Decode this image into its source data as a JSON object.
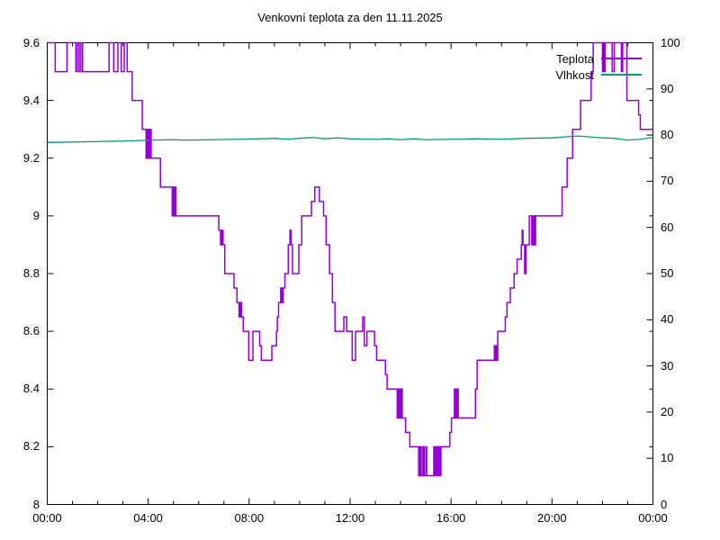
{
  "chart_data": {
    "type": "line",
    "title": "Venkovní teplota za den 11.11.2025",
    "grid": false,
    "legend_position": "top-right-inside",
    "background_color": "#ffffff",
    "border_color": "#000000",
    "x_axis": {
      "unit": "time HH:MM",
      "range_minutes": [
        0,
        1440
      ],
      "major_tick_every_minutes": 240,
      "minor_tick_every_minutes": 60,
      "major_tick_minutes": [
        0,
        240,
        480,
        720,
        960,
        1200,
        1440
      ],
      "tick_labels": [
        "00:00",
        "04:00",
        "08:00",
        "12:00",
        "16:00",
        "20:00",
        "00:00"
      ]
    },
    "y_axis_left": {
      "series": "Teplota",
      "range": [
        8,
        9.6
      ],
      "tick_step": 0.2,
      "tick_values": [
        8,
        8.2,
        8.4,
        8.6,
        8.8,
        9,
        9.2,
        9.4,
        9.6
      ],
      "tick_labels": [
        "8",
        "8.2",
        "8.4",
        "8.6",
        "8.8",
        "9",
        "9.2",
        "9.4",
        "9.6"
      ]
    },
    "y_axis_right": {
      "series": "Vlhkost",
      "range": [
        0,
        100
      ],
      "tick_step": 10,
      "tick_values": [
        0,
        10,
        20,
        30,
        40,
        50,
        60,
        70,
        80,
        90,
        100
      ],
      "tick_labels": [
        "0",
        "10",
        "20",
        "30",
        "40",
        "50",
        "60",
        "70",
        "80",
        "90",
        "100"
      ]
    },
    "series": [
      {
        "name": "Teplota",
        "color": "#9400d3",
        "axis": "left",
        "style": "steps",
        "min_value": 8.1,
        "max_value": 9.6,
        "points_format": "[minutes_from_midnight, deg_C]",
        "points": [
          [
            0,
            9.6
          ],
          [
            19,
            9.5
          ],
          [
            47,
            9.6
          ],
          [
            68,
            9.5
          ],
          [
            72,
            9.6
          ],
          [
            76,
            9.5
          ],
          [
            80,
            9.6
          ],
          [
            84,
            9.5
          ],
          [
            147,
            9.6
          ],
          [
            158,
            9.5
          ],
          [
            168,
            9.6
          ],
          [
            176,
            9.5
          ],
          [
            183,
            9.6
          ],
          [
            190,
            9.5
          ],
          [
            202,
            9.4
          ],
          [
            226,
            9.3
          ],
          [
            235,
            9.2
          ],
          [
            238,
            9.3
          ],
          [
            241,
            9.2
          ],
          [
            244,
            9.3
          ],
          [
            247,
            9.2
          ],
          [
            269,
            9.1
          ],
          [
            297,
            9.0
          ],
          [
            300,
            9.1
          ],
          [
            302,
            9.0
          ],
          [
            304,
            9.1
          ],
          [
            306,
            9.0
          ],
          [
            408,
            8.95
          ],
          [
            412,
            8.9
          ],
          [
            415,
            8.95
          ],
          [
            418,
            8.9
          ],
          [
            422,
            8.8
          ],
          [
            444,
            8.75
          ],
          [
            451,
            8.7
          ],
          [
            456,
            8.65
          ],
          [
            459,
            8.7
          ],
          [
            462,
            8.65
          ],
          [
            466,
            8.6
          ],
          [
            479,
            8.5
          ],
          [
            489,
            8.6
          ],
          [
            505,
            8.55
          ],
          [
            509,
            8.5
          ],
          [
            534,
            8.55
          ],
          [
            545,
            8.6
          ],
          [
            547,
            8.65
          ],
          [
            550,
            8.7
          ],
          [
            555,
            8.75
          ],
          [
            558,
            8.7
          ],
          [
            561,
            8.75
          ],
          [
            565,
            8.8
          ],
          [
            573,
            8.9
          ],
          [
            577,
            8.95
          ],
          [
            580,
            8.9
          ],
          [
            583,
            8.8
          ],
          [
            598,
            8.9
          ],
          [
            605,
            9.0
          ],
          [
            628,
            9.05
          ],
          [
            636,
            9.1
          ],
          [
            647,
            9.05
          ],
          [
            657,
            9.0
          ],
          [
            663,
            8.9
          ],
          [
            671,
            8.8
          ],
          [
            678,
            8.7
          ],
          [
            684,
            8.6
          ],
          [
            705,
            8.65
          ],
          [
            712,
            8.6
          ],
          [
            725,
            8.5
          ],
          [
            733,
            8.6
          ],
          [
            750,
            8.65
          ],
          [
            754,
            8.55
          ],
          [
            760,
            8.6
          ],
          [
            778,
            8.55
          ],
          [
            783,
            8.5
          ],
          [
            804,
            8.45
          ],
          [
            808,
            8.4
          ],
          [
            832,
            8.3
          ],
          [
            835,
            8.4
          ],
          [
            838,
            8.3
          ],
          [
            841,
            8.4
          ],
          [
            844,
            8.3
          ],
          [
            852,
            8.25
          ],
          [
            862,
            8.2
          ],
          [
            883,
            8.1
          ],
          [
            886,
            8.2
          ],
          [
            889,
            8.1
          ],
          [
            893,
            8.2
          ],
          [
            896,
            8.1
          ],
          [
            900,
            8.2
          ],
          [
            902,
            8.1
          ],
          [
            919,
            8.2
          ],
          [
            922,
            8.1
          ],
          [
            924,
            8.2
          ],
          [
            927,
            8.1
          ],
          [
            930,
            8.2
          ],
          [
            933,
            8.1
          ],
          [
            936,
            8.2
          ],
          [
            957,
            8.25
          ],
          [
            961,
            8.3
          ],
          [
            968,
            8.4
          ],
          [
            971,
            8.3
          ],
          [
            974,
            8.4
          ],
          [
            977,
            8.3
          ],
          [
            1018,
            8.4
          ],
          [
            1022,
            8.5
          ],
          [
            1063,
            8.55
          ],
          [
            1065,
            8.5
          ],
          [
            1067,
            8.55
          ],
          [
            1069,
            8.5
          ],
          [
            1071,
            8.6
          ],
          [
            1089,
            8.65
          ],
          [
            1093,
            8.7
          ],
          [
            1101,
            8.75
          ],
          [
            1110,
            8.8
          ],
          [
            1117,
            8.85
          ],
          [
            1127,
            8.9
          ],
          [
            1129,
            8.95
          ],
          [
            1131,
            8.9
          ],
          [
            1135,
            8.8
          ],
          [
            1138,
            8.9
          ],
          [
            1146,
            9.0
          ],
          [
            1152,
            8.9
          ],
          [
            1155,
            9.0
          ],
          [
            1158,
            8.9
          ],
          [
            1161,
            9.0
          ],
          [
            1224,
            9.1
          ],
          [
            1236,
            9.2
          ],
          [
            1249,
            9.3
          ],
          [
            1268,
            9.4
          ],
          [
            1293,
            9.5
          ],
          [
            1298,
            9.6
          ],
          [
            1320,
            9.5
          ],
          [
            1322,
            9.6
          ],
          [
            1324,
            9.5
          ],
          [
            1326,
            9.6
          ],
          [
            1343,
            9.5
          ],
          [
            1348,
            9.6
          ],
          [
            1365,
            9.5
          ],
          [
            1368,
            9.6
          ],
          [
            1378,
            9.4
          ],
          [
            1406,
            9.35
          ],
          [
            1410,
            9.3
          ],
          [
            1440,
            9.3
          ]
        ]
      },
      {
        "name": "Vlhkost",
        "color": "#009e73",
        "axis": "right",
        "style": "line",
        "min_value": 78.4,
        "max_value": 79.8,
        "points_format": "[minutes_from_midnight, percent]",
        "points": [
          [
            0,
            78.4
          ],
          [
            60,
            78.5
          ],
          [
            120,
            78.6
          ],
          [
            180,
            78.7
          ],
          [
            240,
            78.9
          ],
          [
            300,
            79.0
          ],
          [
            330,
            78.9
          ],
          [
            390,
            79.0
          ],
          [
            450,
            79.1
          ],
          [
            510,
            79.2
          ],
          [
            540,
            79.3
          ],
          [
            570,
            79.1
          ],
          [
            600,
            79.3
          ],
          [
            630,
            79.5
          ],
          [
            660,
            79.2
          ],
          [
            690,
            79.4
          ],
          [
            720,
            79.2
          ],
          [
            780,
            79.1
          ],
          [
            810,
            79.2
          ],
          [
            840,
            79.0
          ],
          [
            870,
            79.2
          ],
          [
            900,
            79.0
          ],
          [
            960,
            79.1
          ],
          [
            1020,
            79.2
          ],
          [
            1080,
            79.1
          ],
          [
            1140,
            79.3
          ],
          [
            1200,
            79.4
          ],
          [
            1230,
            79.6
          ],
          [
            1260,
            79.8
          ],
          [
            1290,
            79.6
          ],
          [
            1320,
            79.4
          ],
          [
            1350,
            79.3
          ],
          [
            1380,
            78.9
          ],
          [
            1410,
            79.1
          ],
          [
            1440,
            79.5
          ]
        ]
      }
    ]
  }
}
